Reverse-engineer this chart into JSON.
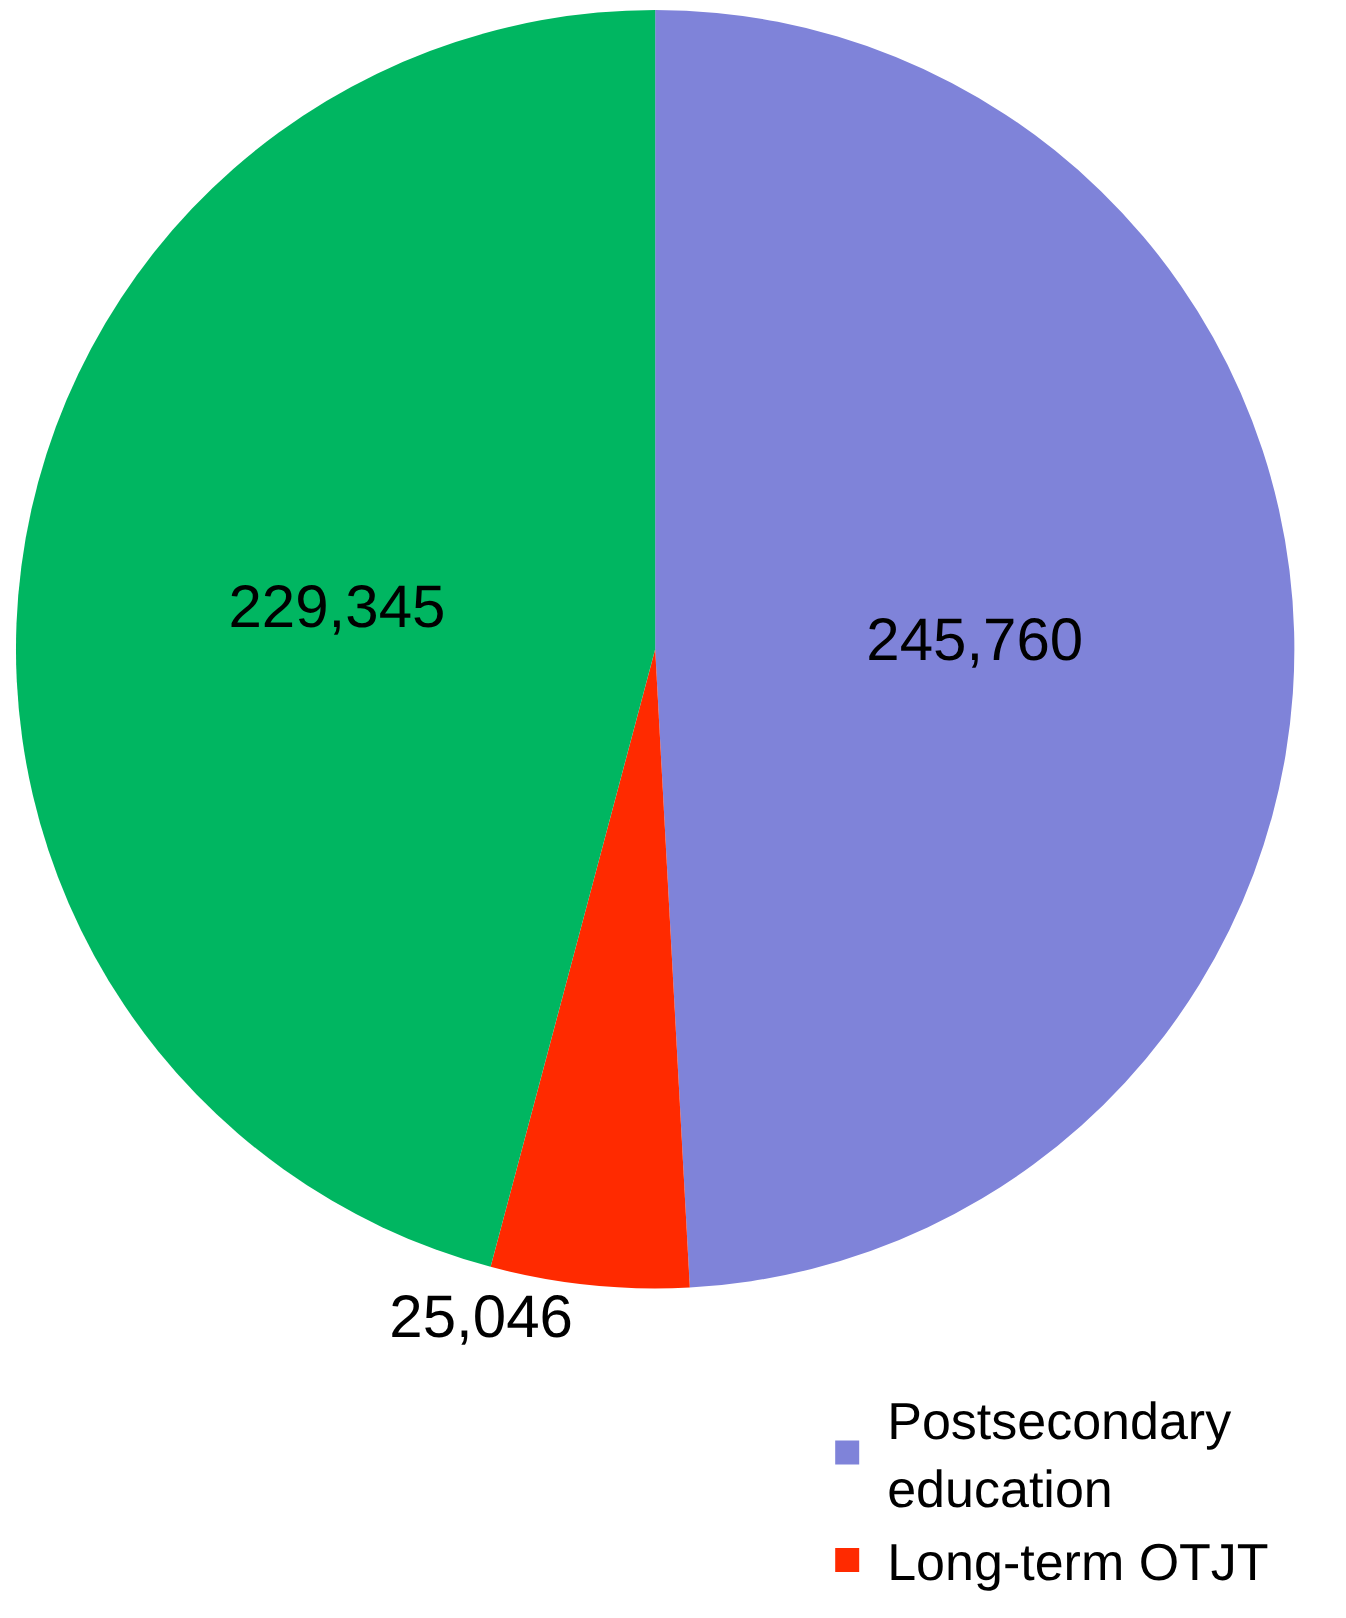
{
  "chart_data": {
    "type": "pie",
    "categories": [
      "Postsecondary education",
      "Long-term OTJT",
      null
    ],
    "values": [
      245760,
      25046,
      229345
    ],
    "colors": [
      "#7f83d9",
      "#ff2a00",
      "#00b661"
    ],
    "value_labels": [
      "245,760",
      "25,046",
      "229,345"
    ],
    "legend": "bottom right"
  }
}
